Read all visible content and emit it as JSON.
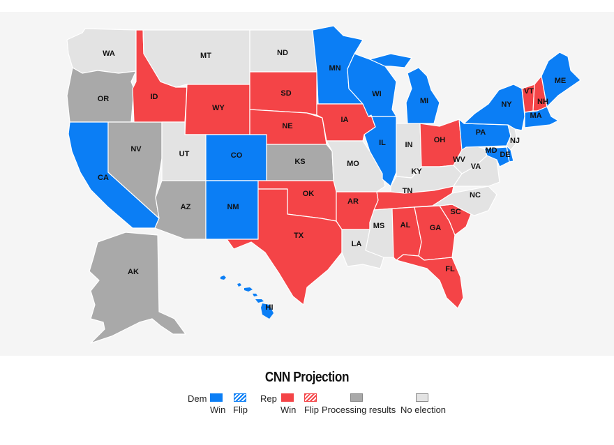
{
  "colors": {
    "dem_win": "#0b7ef5",
    "rep_win": "#f44447",
    "processing": "#a9a9a9",
    "no_election": "#e3e3e3",
    "ocean": "#f5f5f5"
  },
  "states": {
    "WA": {
      "label": "WA",
      "status": "none"
    },
    "OR": {
      "label": "OR",
      "status": "processing"
    },
    "CA": {
      "label": "CA",
      "status": "dem"
    },
    "NV": {
      "label": "NV",
      "status": "processing"
    },
    "ID": {
      "label": "ID",
      "status": "rep"
    },
    "MT": {
      "label": "MT",
      "status": "none"
    },
    "WY": {
      "label": "WY",
      "status": "rep"
    },
    "UT": {
      "label": "UT",
      "status": "none"
    },
    "AZ": {
      "label": "AZ",
      "status": "processing"
    },
    "CO": {
      "label": "CO",
      "status": "dem"
    },
    "NM": {
      "label": "NM",
      "status": "dem"
    },
    "ND": {
      "label": "ND",
      "status": "none"
    },
    "SD": {
      "label": "SD",
      "status": "rep"
    },
    "NE": {
      "label": "NE",
      "status": "rep"
    },
    "KS": {
      "label": "KS",
      "status": "processing"
    },
    "OK": {
      "label": "OK",
      "status": "rep"
    },
    "TX": {
      "label": "TX",
      "status": "rep"
    },
    "MN": {
      "label": "MN",
      "status": "dem"
    },
    "IA": {
      "label": "IA",
      "status": "rep"
    },
    "MO": {
      "label": "MO",
      "status": "none"
    },
    "AR": {
      "label": "AR",
      "status": "rep"
    },
    "LA": {
      "label": "LA",
      "status": "none"
    },
    "WI": {
      "label": "WI",
      "status": "dem"
    },
    "IL": {
      "label": "IL",
      "status": "dem"
    },
    "MI": {
      "label": "MI",
      "status": "dem"
    },
    "IN": {
      "label": "IN",
      "status": "none"
    },
    "OH": {
      "label": "OH",
      "status": "rep"
    },
    "KY": {
      "label": "KY",
      "status": "none"
    },
    "TN": {
      "label": "TN",
      "status": "rep"
    },
    "MS": {
      "label": "MS",
      "status": "none"
    },
    "AL": {
      "label": "AL",
      "status": "rep"
    },
    "GA": {
      "label": "GA",
      "status": "rep"
    },
    "FL": {
      "label": "FL",
      "status": "rep"
    },
    "SC": {
      "label": "SC",
      "status": "rep"
    },
    "NC": {
      "label": "NC",
      "status": "none"
    },
    "VA": {
      "label": "VA",
      "status": "none"
    },
    "WV": {
      "label": "WV",
      "status": "none"
    },
    "PA": {
      "label": "PA",
      "status": "dem"
    },
    "NY": {
      "label": "NY",
      "status": "dem"
    },
    "VT": {
      "label": "VT",
      "status": "rep"
    },
    "NH": {
      "label": "NH",
      "status": "rep"
    },
    "ME": {
      "label": "ME",
      "status": "dem"
    },
    "MA": {
      "label": "MA",
      "status": "dem"
    },
    "NJ": {
      "label": "NJ",
      "status": "none"
    },
    "MD": {
      "label": "MD",
      "status": "dem"
    },
    "DE": {
      "label": "DE",
      "status": "dem"
    },
    "AK": {
      "label": "AK",
      "status": "processing"
    },
    "HI": {
      "label": "HI",
      "status": "dem"
    }
  },
  "legend": {
    "title": "CNN Projection",
    "dem_label": "Dem",
    "rep_label": "Rep",
    "dem_win": "Win",
    "dem_flip": "Flip",
    "rep_win": "Win",
    "rep_flip": "Flip",
    "processing": "Processing results",
    "no_election": "No election"
  }
}
